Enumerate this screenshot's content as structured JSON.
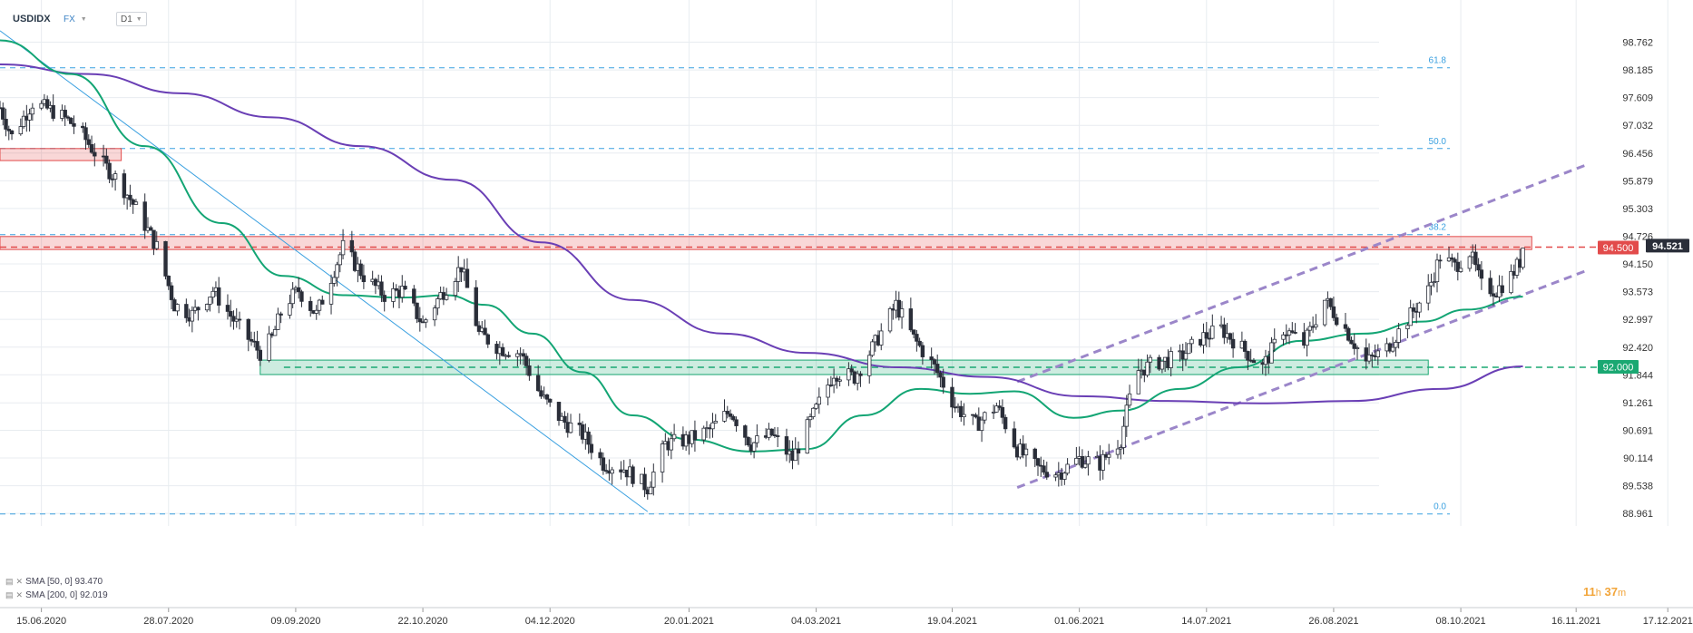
{
  "header": {
    "symbol": "USDIDX",
    "market": "FX",
    "timeframe": "D1"
  },
  "countdown": {
    "hours": "11",
    "h_unit": "h",
    "minutes": "37",
    "m_unit": "m"
  },
  "legend": [
    {
      "label": "SMA [50, 0] 93.470",
      "color": "#13a574"
    },
    {
      "label": "SMA [200, 0] 92.019",
      "color": "#6a3fb5"
    }
  ],
  "colors": {
    "background": "#ffffff",
    "grid": "#e8ecf0",
    "bull": "#ffffff",
    "bear": "#2a2e39",
    "sma50": "#13a574",
    "sma200": "#6a3fb5",
    "fib": "#3aa0e0",
    "trend": "#3aa0e0",
    "channel": "#9b86c9",
    "resistance": "#e24b4b",
    "support": "#1aa872",
    "price": "#2a2e39"
  },
  "chart_data": {
    "type": "candlestick",
    "symbol": "USDIDX",
    "timeframe": "D1",
    "y_range": [
      88.7,
      99.3
    ],
    "x_range": [
      "2020-06-01",
      "2021-12-20"
    ],
    "x_ticks": [
      {
        "label": "15.06.2020",
        "date": "2020-06-15"
      },
      {
        "label": "28.07.2020",
        "date": "2020-07-28"
      },
      {
        "label": "09.09.2020",
        "date": "2020-09-09"
      },
      {
        "label": "22.10.2020",
        "date": "2020-10-22"
      },
      {
        "label": "04.12.2020",
        "date": "2020-12-04"
      },
      {
        "label": "20.01.2021",
        "date": "2021-01-20"
      },
      {
        "label": "04.03.2021",
        "date": "2021-03-04"
      },
      {
        "label": "19.04.2021",
        "date": "2021-04-19"
      },
      {
        "label": "01.06.2021",
        "date": "2021-06-01"
      },
      {
        "label": "14.07.2021",
        "date": "2021-07-14"
      },
      {
        "label": "26.08.2021",
        "date": "2021-08-26"
      },
      {
        "label": "08.10.2021",
        "date": "2021-10-08"
      },
      {
        "label": "16.11.2021",
        "date": "2021-11-16"
      },
      {
        "label": "17.12.2021",
        "date": "2021-12-17"
      }
    ],
    "y_ticks": [
      "98.762",
      "98.185",
      "97.609",
      "97.032",
      "96.456",
      "95.879",
      "95.303",
      "94.726",
      "94.150",
      "93.573",
      "92.997",
      "92.420",
      "91.844",
      "91.261",
      "90.691",
      "90.114",
      "89.538",
      "88.961"
    ],
    "fibonacci": [
      {
        "label": "61.8",
        "price": 98.23
      },
      {
        "label": "50.0",
        "price": 96.55
      },
      {
        "label": "38.2",
        "price": 94.76
      },
      {
        "label": "0.0",
        "price": 88.95
      }
    ],
    "price_marks": [
      {
        "label": "94.500",
        "price": 94.5,
        "kind": "resistance"
      },
      {
        "label": "94.521",
        "price": 94.521,
        "kind": "last"
      },
      {
        "label": "92.000",
        "price": 92.0,
        "kind": "support"
      }
    ],
    "zones": [
      {
        "name": "resistance-zone-left",
        "kind": "resistance",
        "from": "2020-06-01",
        "to": "2020-07-12",
        "low": 96.3,
        "high": 96.55
      },
      {
        "name": "resistance-zone",
        "kind": "resistance",
        "from": "2020-06-01",
        "to": "2021-11-01",
        "low": 94.45,
        "high": 94.72
      },
      {
        "name": "support-zone",
        "kind": "support",
        "from": "2020-08-28",
        "to": "2021-09-27",
        "low": 91.85,
        "high": 92.15
      }
    ],
    "trendline": {
      "from": {
        "date": "2020-06-01",
        "price": 99.0
      },
      "to": {
        "date": "2021-01-06",
        "price": 89.0
      }
    },
    "channel": {
      "upper": [
        {
          "date": "2021-05-11",
          "price": 91.7
        },
        {
          "date": "2021-11-19",
          "price": 96.2
        }
      ],
      "lower": [
        {
          "date": "2021-05-11",
          "price": 89.5
        },
        {
          "date": "2021-11-19",
          "price": 94.0
        }
      ]
    },
    "sma50": [
      {
        "date": "2020-06-01",
        "price": 98.8
      },
      {
        "date": "2020-06-25",
        "price": 98.1
      },
      {
        "date": "2020-07-20",
        "price": 96.6
      },
      {
        "date": "2020-08-15",
        "price": 95.0
      },
      {
        "date": "2020-09-05",
        "price": 93.9
      },
      {
        "date": "2020-09-25",
        "price": 93.5
      },
      {
        "date": "2020-10-15",
        "price": 93.45
      },
      {
        "date": "2020-10-30",
        "price": 93.5
      },
      {
        "date": "2020-11-12",
        "price": 93.3
      },
      {
        "date": "2020-11-28",
        "price": 92.7
      },
      {
        "date": "2020-12-15",
        "price": 91.9
      },
      {
        "date": "2021-01-01",
        "price": 91.0
      },
      {
        "date": "2021-01-20",
        "price": 90.5
      },
      {
        "date": "2021-02-10",
        "price": 90.25
      },
      {
        "date": "2021-03-01",
        "price": 90.3
      },
      {
        "date": "2021-03-20",
        "price": 91.0
      },
      {
        "date": "2021-04-08",
        "price": 91.55
      },
      {
        "date": "2021-04-25",
        "price": 91.45
      },
      {
        "date": "2021-05-10",
        "price": 91.5
      },
      {
        "date": "2021-05-30",
        "price": 90.95
      },
      {
        "date": "2021-06-15",
        "price": 91.1
      },
      {
        "date": "2021-07-05",
        "price": 91.55
      },
      {
        "date": "2021-07-25",
        "price": 92.0
      },
      {
        "date": "2021-08-15",
        "price": 92.55
      },
      {
        "date": "2021-09-05",
        "price": 92.7
      },
      {
        "date": "2021-09-25",
        "price": 92.95
      },
      {
        "date": "2021-10-10",
        "price": 93.2
      },
      {
        "date": "2021-10-29",
        "price": 93.47
      }
    ],
    "sma200": [
      {
        "date": "2020-06-01",
        "price": 98.3
      },
      {
        "date": "2020-07-01",
        "price": 98.1
      },
      {
        "date": "2020-08-01",
        "price": 97.7
      },
      {
        "date": "2020-09-01",
        "price": 97.2
      },
      {
        "date": "2020-10-01",
        "price": 96.6
      },
      {
        "date": "2020-11-01",
        "price": 95.9
      },
      {
        "date": "2020-12-01",
        "price": 94.6
      },
      {
        "date": "2021-01-01",
        "price": 93.4
      },
      {
        "date": "2021-02-01",
        "price": 92.7
      },
      {
        "date": "2021-03-01",
        "price": 92.3
      },
      {
        "date": "2021-04-01",
        "price": 92.0
      },
      {
        "date": "2021-05-01",
        "price": 91.8
      },
      {
        "date": "2021-06-01",
        "price": 91.4
      },
      {
        "date": "2021-07-01",
        "price": 91.3
      },
      {
        "date": "2021-08-01",
        "price": 91.25
      },
      {
        "date": "2021-09-01",
        "price": 91.3
      },
      {
        "date": "2021-10-01",
        "price": 91.55
      },
      {
        "date": "2021-10-29",
        "price": 92.02
      }
    ],
    "close_path": [
      {
        "date": "2020-06-01",
        "price": 97.4
      },
      {
        "date": "2020-06-05",
        "price": 96.8
      },
      {
        "date": "2020-06-12",
        "price": 97.5
      },
      {
        "date": "2020-06-20",
        "price": 97.3
      },
      {
        "date": "2020-06-27",
        "price": 97.0
      },
      {
        "date": "2020-07-05",
        "price": 96.3
      },
      {
        "date": "2020-07-12",
        "price": 95.8
      },
      {
        "date": "2020-07-18",
        "price": 95.2
      },
      {
        "date": "2020-07-24",
        "price": 94.5
      },
      {
        "date": "2020-07-30",
        "price": 93.3
      },
      {
        "date": "2020-08-05",
        "price": 93.1
      },
      {
        "date": "2020-08-12",
        "price": 93.6
      },
      {
        "date": "2020-08-20",
        "price": 92.9
      },
      {
        "date": "2020-08-28",
        "price": 92.3
      },
      {
        "date": "2020-09-01",
        "price": 92.6
      },
      {
        "date": "2020-09-05",
        "price": 93.3
      },
      {
        "date": "2020-09-10",
        "price": 93.6
      },
      {
        "date": "2020-09-16",
        "price": 93.1
      },
      {
        "date": "2020-09-25",
        "price": 94.5
      },
      {
        "date": "2020-10-02",
        "price": 93.9
      },
      {
        "date": "2020-10-09",
        "price": 93.5
      },
      {
        "date": "2020-10-15",
        "price": 93.6
      },
      {
        "date": "2020-10-22",
        "price": 92.9
      },
      {
        "date": "2020-10-28",
        "price": 93.5
      },
      {
        "date": "2020-11-04",
        "price": 94.1
      },
      {
        "date": "2020-11-10",
        "price": 92.7
      },
      {
        "date": "2020-11-17",
        "price": 92.4
      },
      {
        "date": "2020-11-24",
        "price": 92.3
      },
      {
        "date": "2020-12-01",
        "price": 91.4
      },
      {
        "date": "2020-12-08",
        "price": 90.9
      },
      {
        "date": "2020-12-15",
        "price": 90.6
      },
      {
        "date": "2020-12-22",
        "price": 90.0
      },
      {
        "date": "2020-12-29",
        "price": 89.9
      },
      {
        "date": "2021-01-06",
        "price": 89.5
      },
      {
        "date": "2021-01-12",
        "price": 90.4
      },
      {
        "date": "2021-01-20",
        "price": 90.5
      },
      {
        "date": "2021-01-27",
        "price": 90.7
      },
      {
        "date": "2021-02-03",
        "price": 91.1
      },
      {
        "date": "2021-02-10",
        "price": 90.4
      },
      {
        "date": "2021-02-17",
        "price": 90.6
      },
      {
        "date": "2021-02-24",
        "price": 90.1
      },
      {
        "date": "2021-03-03",
        "price": 91.0
      },
      {
        "date": "2021-03-10",
        "price": 91.9
      },
      {
        "date": "2021-03-17",
        "price": 91.8
      },
      {
        "date": "2021-03-24",
        "price": 92.5
      },
      {
        "date": "2021-03-31",
        "price": 93.3
      },
      {
        "date": "2021-04-06",
        "price": 92.6
      },
      {
        "date": "2021-04-13",
        "price": 92.0
      },
      {
        "date": "2021-04-20",
        "price": 91.2
      },
      {
        "date": "2021-04-27",
        "price": 90.8
      },
      {
        "date": "2021-05-04",
        "price": 91.2
      },
      {
        "date": "2021-05-11",
        "price": 90.3
      },
      {
        "date": "2021-05-18",
        "price": 89.9
      },
      {
        "date": "2021-05-25",
        "price": 89.8
      },
      {
        "date": "2021-06-01",
        "price": 90.1
      },
      {
        "date": "2021-06-08",
        "price": 90.0
      },
      {
        "date": "2021-06-15",
        "price": 90.5
      },
      {
        "date": "2021-06-20",
        "price": 91.9
      },
      {
        "date": "2021-06-27",
        "price": 92.1
      },
      {
        "date": "2021-07-05",
        "price": 92.2
      },
      {
        "date": "2021-07-12",
        "price": 92.6
      },
      {
        "date": "2021-07-19",
        "price": 92.8
      },
      {
        "date": "2021-07-26",
        "price": 92.4
      },
      {
        "date": "2021-08-02",
        "price": 92.0
      },
      {
        "date": "2021-08-09",
        "price": 92.8
      },
      {
        "date": "2021-08-16",
        "price": 92.5
      },
      {
        "date": "2021-08-23",
        "price": 93.4
      },
      {
        "date": "2021-08-30",
        "price": 92.8
      },
      {
        "date": "2021-09-06",
        "price": 92.1
      },
      {
        "date": "2021-09-13",
        "price": 92.4
      },
      {
        "date": "2021-09-20",
        "price": 93.0
      },
      {
        "date": "2021-09-27",
        "price": 93.6
      },
      {
        "date": "2021-10-01",
        "price": 94.3
      },
      {
        "date": "2021-10-06",
        "price": 94.1
      },
      {
        "date": "2021-10-11",
        "price": 94.4
      },
      {
        "date": "2021-10-15",
        "price": 93.7
      },
      {
        "date": "2021-10-20",
        "price": 93.6
      },
      {
        "date": "2021-10-25",
        "price": 93.9
      },
      {
        "date": "2021-10-28",
        "price": 94.2
      },
      {
        "date": "2021-10-29",
        "price": 94.52
      }
    ]
  }
}
